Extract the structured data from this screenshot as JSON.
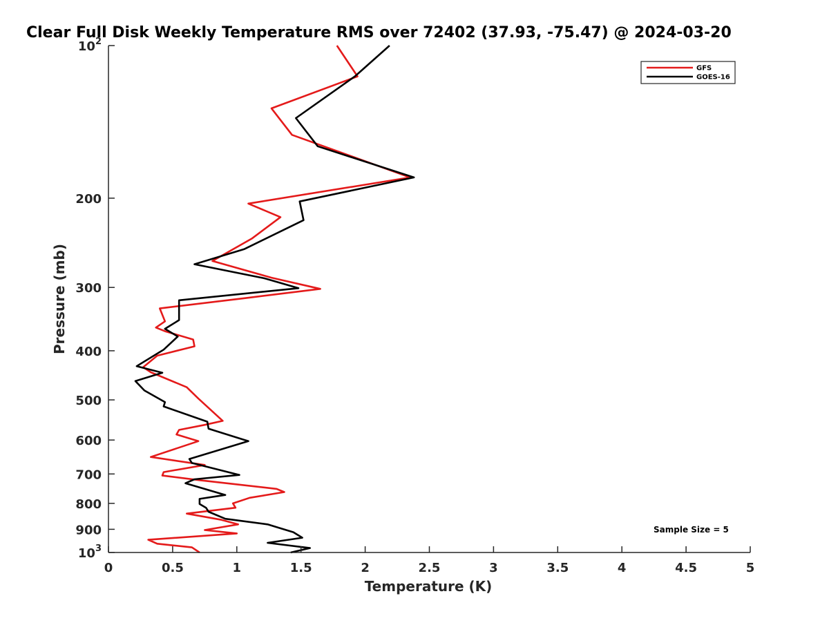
{
  "chart_data": {
    "type": "line",
    "title": "Clear Full Disk Weekly Temperature RMS over 72402 (37.93, -75.47) @ 2024-03-20",
    "xlabel": "Temperature (K)",
    "ylabel": "Pressure (mb)",
    "xlim": [
      0,
      5
    ],
    "ylim": [
      100,
      1000
    ],
    "y_scale": "log",
    "y_reversed": true,
    "grid": false,
    "legend_position": "top-right",
    "x_ticks": [
      "0",
      "0.5",
      "1",
      "1.5",
      "2",
      "2.5",
      "3",
      "3.5",
      "4",
      "4.5",
      "5"
    ],
    "y_ticks": [
      {
        "value": 100,
        "label": "10",
        "sup": "2"
      },
      {
        "value": 200,
        "label": "200",
        "sup": ""
      },
      {
        "value": 300,
        "label": "300",
        "sup": ""
      },
      {
        "value": 400,
        "label": "400",
        "sup": ""
      },
      {
        "value": 500,
        "label": "500",
        "sup": ""
      },
      {
        "value": 600,
        "label": "600",
        "sup": ""
      },
      {
        "value": 700,
        "label": "700",
        "sup": ""
      },
      {
        "value": 800,
        "label": "800",
        "sup": ""
      },
      {
        "value": 900,
        "label": "900",
        "sup": ""
      },
      {
        "value": 1000,
        "label": "10",
        "sup": "3"
      }
    ],
    "annotation": "Sample Size = 5",
    "series": [
      {
        "name": "GFS",
        "color": "#e41a1a",
        "points": [
          [
            1.78,
            100
          ],
          [
            1.94,
            115
          ],
          [
            1.27,
            133
          ],
          [
            1.43,
            150
          ],
          [
            2.35,
            182
          ],
          [
            1.09,
            205
          ],
          [
            1.34,
            218
          ],
          [
            1.12,
            240
          ],
          [
            0.81,
            266
          ],
          [
            1.27,
            287
          ],
          [
            1.65,
            302
          ],
          [
            1.06,
            315
          ],
          [
            0.4,
            330
          ],
          [
            0.44,
            350
          ],
          [
            0.37,
            360
          ],
          [
            0.44,
            366
          ],
          [
            0.66,
            380
          ],
          [
            0.67,
            392
          ],
          [
            0.38,
            409
          ],
          [
            0.27,
            431
          ],
          [
            0.33,
            441
          ],
          [
            0.61,
            472
          ],
          [
            0.7,
            497
          ],
          [
            0.89,
            550
          ],
          [
            0.75,
            560
          ],
          [
            0.55,
            573
          ],
          [
            0.53,
            585
          ],
          [
            0.7,
            603
          ],
          [
            0.33,
            648
          ],
          [
            0.75,
            672
          ],
          [
            0.43,
            694
          ],
          [
            0.42,
            705
          ],
          [
            0.71,
            720
          ],
          [
            1.31,
            749
          ],
          [
            1.37,
            760
          ],
          [
            1.1,
            780
          ],
          [
            0.97,
            800
          ],
          [
            0.99,
            816
          ],
          [
            0.61,
            838
          ],
          [
            0.88,
            862
          ],
          [
            1.01,
            880
          ],
          [
            0.75,
            903
          ],
          [
            1.0,
            917
          ],
          [
            0.31,
            944
          ],
          [
            0.38,
            961
          ],
          [
            0.65,
            977
          ],
          [
            0.71,
            1000
          ]
        ]
      },
      {
        "name": "GOES-16",
        "color": "#000000",
        "points": [
          [
            2.19,
            100
          ],
          [
            1.92,
            115
          ],
          [
            1.46,
            139
          ],
          [
            1.63,
            158
          ],
          [
            2.38,
            182
          ],
          [
            1.49,
            203
          ],
          [
            1.52,
            221
          ],
          [
            1.06,
            252
          ],
          [
            0.67,
            270
          ],
          [
            1.22,
            288
          ],
          [
            1.48,
            301
          ],
          [
            0.55,
            318
          ],
          [
            0.55,
            348
          ],
          [
            0.44,
            362
          ],
          [
            0.54,
            375
          ],
          [
            0.43,
            398
          ],
          [
            0.22,
            429
          ],
          [
            0.42,
            442
          ],
          [
            0.21,
            459
          ],
          [
            0.28,
            479
          ],
          [
            0.44,
            505
          ],
          [
            0.43,
            515
          ],
          [
            0.77,
            552
          ],
          [
            0.78,
            570
          ],
          [
            1.09,
            603
          ],
          [
            0.63,
            654
          ],
          [
            0.65,
            666
          ],
          [
            1.02,
            703
          ],
          [
            0.67,
            717
          ],
          [
            0.6,
            730
          ],
          [
            0.91,
            770
          ],
          [
            0.71,
            784
          ],
          [
            0.71,
            802
          ],
          [
            0.76,
            816
          ],
          [
            0.78,
            831
          ],
          [
            0.91,
            858
          ],
          [
            1.24,
            880
          ],
          [
            1.44,
            912
          ],
          [
            1.51,
            935
          ],
          [
            1.24,
            957
          ],
          [
            1.57,
            980
          ],
          [
            1.42,
            1000
          ]
        ]
      }
    ]
  }
}
